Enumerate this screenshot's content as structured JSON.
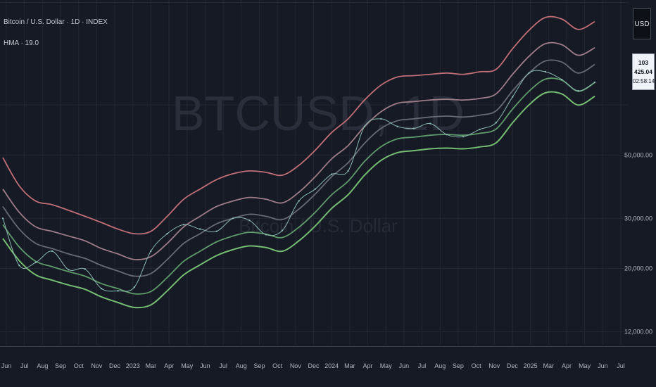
{
  "header": {
    "title": "Bitcoin / U.S. Dollar · 1D · INDEX",
    "indicator": "HMA · 19.0"
  },
  "watermark": {
    "symbol": "BTCUSD, 1D",
    "subtitle": "Bitcoin / U.S. Dollar"
  },
  "currency_button": "USD",
  "last_price": {
    "price": "103 425.04",
    "countdown": "02:58:14"
  },
  "colors": {
    "background": "#161a25",
    "grid": "#232734",
    "price": "#8ab8b0",
    "band_upper_outer": "#c06e76",
    "band_upper_inner": "#9d7c8a",
    "band_mid": "#666a75",
    "band_lower_inner": "#5f9a6a",
    "band_lower_outer": "#75bd72"
  },
  "chart_data": {
    "type": "line",
    "title": "Bitcoin / U.S. Dollar · 1D · INDEX",
    "yscale": "log",
    "ylim": [
      10800,
      175000
    ],
    "y_ticks": [
      {
        "value": 12000,
        "label": "12,000.00"
      },
      {
        "value": 20000,
        "label": "20,000.00"
      },
      {
        "value": 30000,
        "label": "30,000.00"
      },
      {
        "value": 50000,
        "label": "50,000.00"
      }
    ],
    "x_ticks": [
      "Jun",
      "Jul",
      "Aug",
      "Sep",
      "Oct",
      "Nov",
      "Dec",
      "2023",
      "Mar",
      "Apr",
      "May",
      "Jun",
      "Jul",
      "Aug",
      "Sep",
      "Oct",
      "Nov",
      "Dec",
      "2024",
      "Mar",
      "Apr",
      "May",
      "Jun",
      "Jul",
      "Aug",
      "Sep",
      "Oct",
      "Nov",
      "Dec",
      "2025",
      "Mar",
      "Apr",
      "May",
      "Jun",
      "Jul"
    ],
    "x": [
      "2022-05",
      "2022-06",
      "2022-07",
      "2022-08",
      "2022-09",
      "2022-10",
      "2022-11",
      "2022-12",
      "2023-01",
      "2023-02",
      "2023-03",
      "2023-04",
      "2023-05",
      "2023-06",
      "2023-07",
      "2023-08",
      "2023-09",
      "2023-10",
      "2023-11",
      "2023-12",
      "2024-01",
      "2024-02",
      "2024-03",
      "2024-04",
      "2024-05",
      "2024-06",
      "2024-07",
      "2024-08",
      "2024-09",
      "2024-10",
      "2024-11",
      "2024-12",
      "2025-01",
      "2025-02",
      "2025-03",
      "2025-04",
      "2025-05"
    ],
    "series": [
      {
        "key": "price",
        "values": [
          30000,
          20500,
          21000,
          23000,
          19800,
          19900,
          17000,
          16700,
          17200,
          23000,
          26500,
          28500,
          27500,
          27000,
          30000,
          29500,
          26300,
          27200,
          34500,
          38000,
          42800,
          44000,
          63000,
          67000,
          63000,
          62000,
          64500,
          59000,
          58000,
          61500,
          65000,
          80000,
          97000,
          98000,
          92000,
          84000,
          90000
        ]
      },
      {
        "key": "hma_upper_outer",
        "values": [
          49000,
          39000,
          34500,
          33500,
          32000,
          30500,
          29000,
          27500,
          26500,
          27000,
          30500,
          35000,
          38000,
          41000,
          43000,
          44000,
          43500,
          42500,
          46000,
          52000,
          60000,
          67000,
          78000,
          88000,
          94000,
          95000,
          96000,
          97000,
          96000,
          98000,
          100000,
          118000,
          137000,
          152000,
          150000,
          138000,
          147000
        ]
      },
      {
        "key": "hma_upper_inner",
        "values": [
          38000,
          31500,
          28000,
          27000,
          26000,
          25000,
          23500,
          22500,
          21500,
          22000,
          24500,
          28000,
          30500,
          33000,
          34500,
          35500,
          35000,
          34000,
          37000,
          42000,
          48500,
          54000,
          63000,
          71000,
          76000,
          77000,
          78000,
          78500,
          78000,
          79000,
          82000,
          96000,
          111000,
          123000,
          122000,
          112000,
          119000
        ]
      },
      {
        "key": "hma_mid",
        "values": [
          33000,
          27500,
          24500,
          23500,
          22500,
          21700,
          20500,
          19600,
          18800,
          19200,
          21500,
          24500,
          26500,
          28700,
          30000,
          31000,
          30500,
          29700,
          32300,
          36500,
          42000,
          47000,
          55000,
          62000,
          66000,
          67000,
          68000,
          68500,
          68000,
          69000,
          71500,
          84000,
          97000,
          107000,
          106000,
          97000,
          104000
        ]
      },
      {
        "key": "hma_lower_inner",
        "values": [
          28500,
          23800,
          21200,
          20300,
          19500,
          18800,
          17700,
          17000,
          16300,
          16600,
          18600,
          21200,
          23000,
          24800,
          26000,
          26800,
          26400,
          25700,
          27900,
          31500,
          36300,
          40500,
          47500,
          53500,
          57000,
          57800,
          58700,
          59100,
          58700,
          59600,
          61700,
          72500,
          83700,
          92400,
          91500,
          83700,
          89800
        ]
      },
      {
        "key": "hma_lower_outer",
        "values": [
          25500,
          21300,
          19000,
          18200,
          17500,
          16900,
          15900,
          15200,
          14600,
          14900,
          16700,
          19000,
          20600,
          22200,
          23300,
          24000,
          23700,
          23000,
          25000,
          28200,
          32500,
          36300,
          42500,
          47900,
          51000,
          51800,
          52600,
          52900,
          52600,
          53400,
          55200,
          64900,
          75000,
          82700,
          81900,
          74900,
          80400
        ]
      }
    ]
  }
}
